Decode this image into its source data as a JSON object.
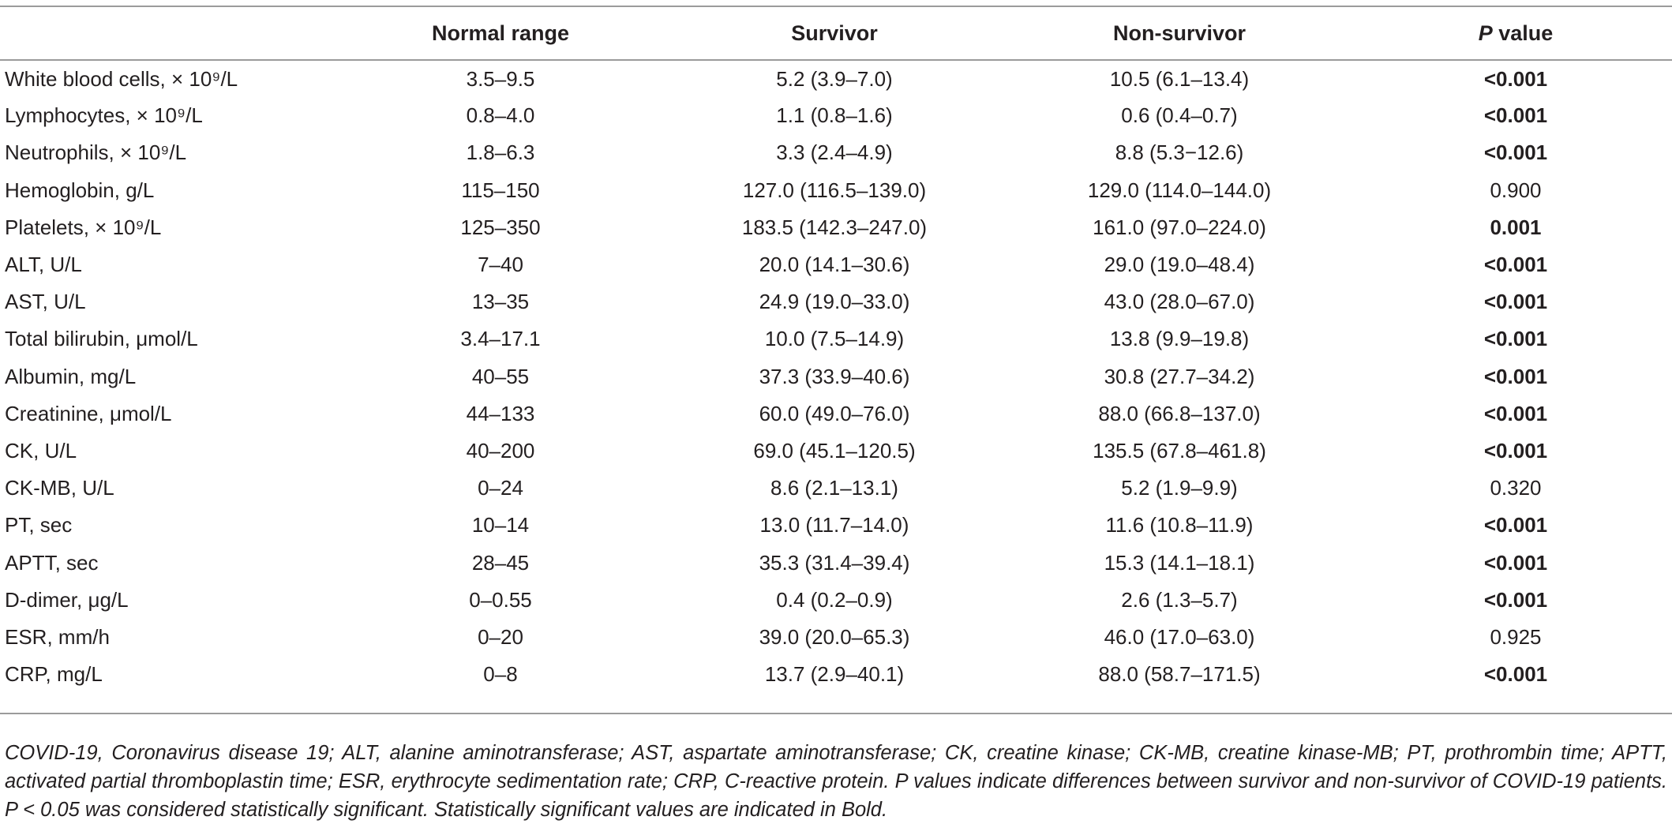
{
  "table": {
    "headers": {
      "col0": "",
      "normal_range": "Normal range",
      "survivor": "Survivor",
      "non_survivor": "Non-survivor",
      "p_value_italic": "P",
      "p_value_rest": " value"
    },
    "rows": [
      {
        "label": "White blood cells, × 10⁹/L",
        "normal": "3.5–9.5",
        "survivor": "5.2 (3.9–7.0)",
        "non_survivor": "10.5 (6.1–13.4)",
        "p": "<0.001",
        "bold": true
      },
      {
        "label": "Lymphocytes, × 10⁹/L",
        "normal": "0.8–4.0",
        "survivor": "1.1 (0.8–1.6)",
        "non_survivor": "0.6 (0.4–0.7)",
        "p": "<0.001",
        "bold": true
      },
      {
        "label": "Neutrophils, × 10⁹/L",
        "normal": "1.8–6.3",
        "survivor": "3.3 (2.4–4.9)",
        "non_survivor": "8.8 (5.3−12.6)",
        "p": "<0.001",
        "bold": true
      },
      {
        "label": "Hemoglobin, g/L",
        "normal": "115–150",
        "survivor": "127.0 (116.5–139.0)",
        "non_survivor": "129.0 (114.0–144.0)",
        "p": "0.900",
        "bold": false
      },
      {
        "label": "Platelets, × 10⁹/L",
        "normal": "125–350",
        "survivor": "183.5 (142.3–247.0)",
        "non_survivor": "161.0 (97.0–224.0)",
        "p": "0.001",
        "bold": true
      },
      {
        "label": "ALT, U/L",
        "normal": "7–40",
        "survivor": "20.0 (14.1–30.6)",
        "non_survivor": "29.0 (19.0–48.4)",
        "p": "<0.001",
        "bold": true
      },
      {
        "label": "AST, U/L",
        "normal": "13–35",
        "survivor": "24.9 (19.0–33.0)",
        "non_survivor": "43.0 (28.0–67.0)",
        "p": "<0.001",
        "bold": true
      },
      {
        "label": "Total bilirubin, μmol/L",
        "normal": "3.4–17.1",
        "survivor": "10.0 (7.5–14.9)",
        "non_survivor": "13.8 (9.9–19.8)",
        "p": "<0.001",
        "bold": true
      },
      {
        "label": "Albumin, mg/L",
        "normal": "40–55",
        "survivor": "37.3 (33.9–40.6)",
        "non_survivor": "30.8  (27.7–34.2)",
        "p": "<0.001",
        "bold": true
      },
      {
        "label": "Creatinine, μmol/L",
        "normal": "44–133",
        "survivor": "60.0 (49.0–76.0)",
        "non_survivor": "88.0  (66.8–137.0)",
        "p": "<0.001",
        "bold": true
      },
      {
        "label": "CK, U/L",
        "normal": "40–200",
        "survivor": "69.0 (45.1–120.5)",
        "non_survivor": "135.5 (67.8–461.8)",
        "p": "<0.001",
        "bold": true
      },
      {
        "label": "CK-MB, U/L",
        "normal": "0–24",
        "survivor": "8.6 (2.1–13.1)",
        "non_survivor": "5.2 (1.9–9.9)",
        "p": "0.320",
        "bold": false
      },
      {
        "label": "PT, sec",
        "normal": "10–14",
        "survivor": "13.0 (11.7–14.0)",
        "non_survivor": "11.6  (10.8–11.9)",
        "p": "<0.001",
        "bold": true
      },
      {
        "label": "APTT, sec",
        "normal": "28–45",
        "survivor": "35.3 (31.4–39.4)",
        "non_survivor": "15.3 (14.1–18.1)",
        "p": "<0.001",
        "bold": true
      },
      {
        "label": "D-dimer, μg/L",
        "normal": "0–0.55",
        "survivor": "0.4 (0.2–0.9)",
        "non_survivor": "2.6 (1.3–5.7)",
        "p": "<0.001",
        "bold": true
      },
      {
        "label": "ESR, mm/h",
        "normal": "0–20",
        "survivor": "39.0 (20.0–65.3)",
        "non_survivor": "46.0 (17.0–63.0)",
        "p": "0.925",
        "bold": false
      },
      {
        "label": "CRP, mg/L",
        "normal": "0–8",
        "survivor": "13.7 (2.9–40.1)",
        "non_survivor": "88.0 (58.7–171.5)",
        "p": "<0.001",
        "bold": true
      }
    ]
  },
  "footnote": "COVID-19, Coronavirus disease 19; ALT, alanine aminotransferase; AST, aspartate aminotransferase; CK, creatine kinase; CK-MB, creatine kinase-MB; PT, prothrombin time; APTT, activated partial thromboplastin time; ESR, erythrocyte sedimentation rate; CRP, C-reactive protein. P values indicate differences between survivor and non-survivor of COVID-19 patients. P < 0.05 was considered statistically significant. Statistically significant values are indicated in Bold."
}
